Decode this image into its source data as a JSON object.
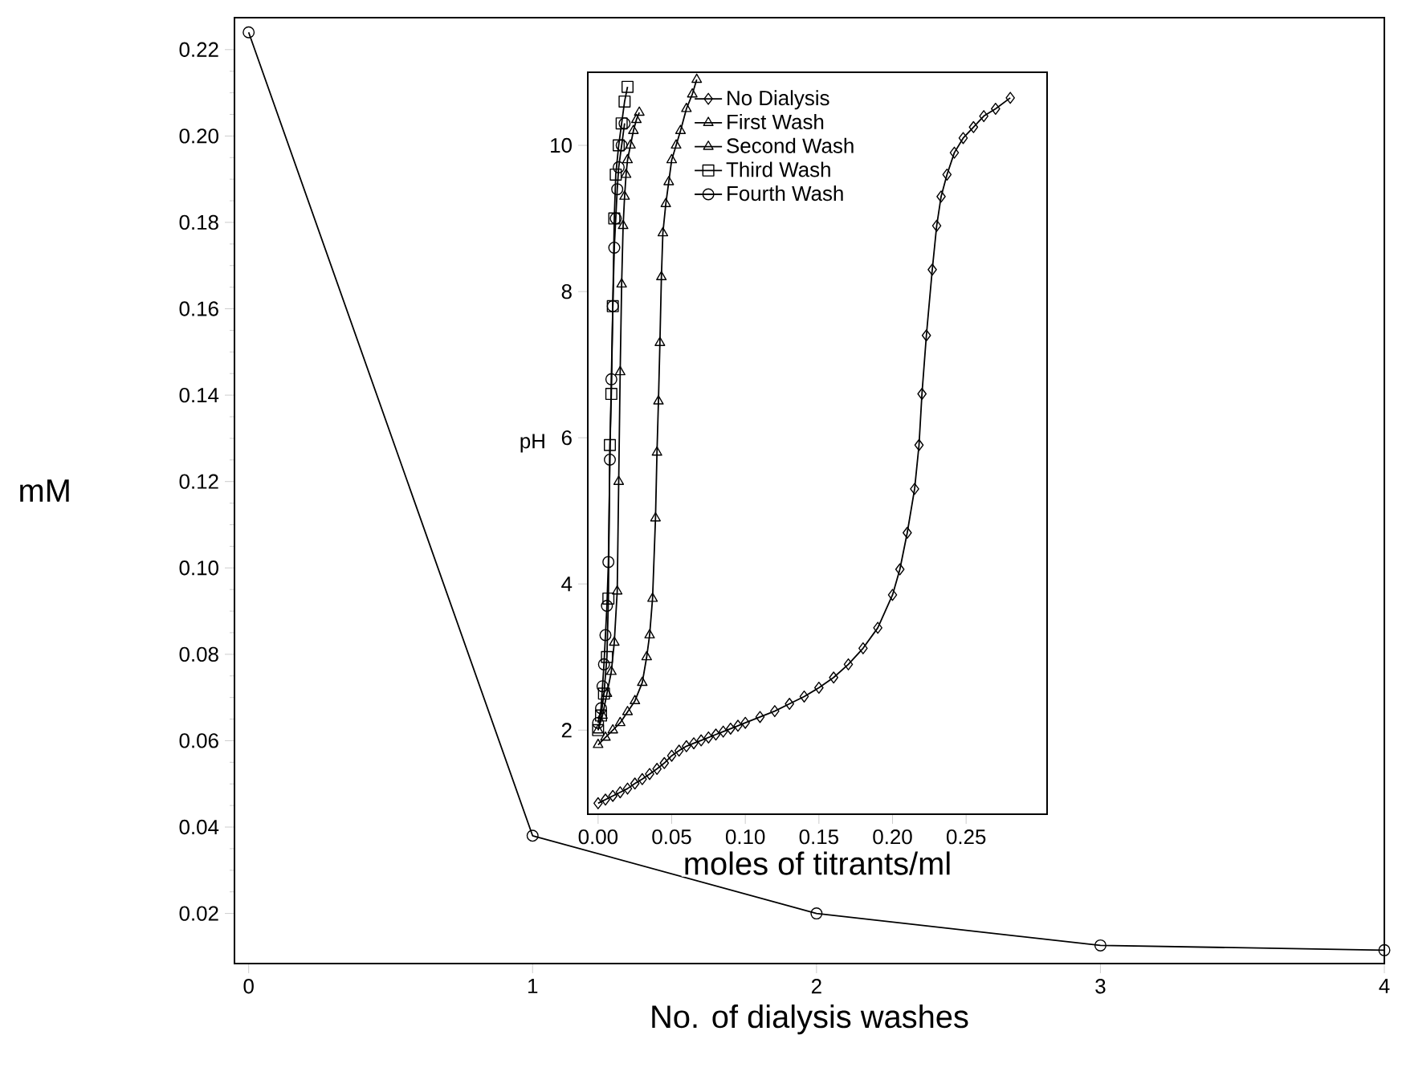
{
  "chart_data": [
    {
      "type": "line",
      "xlabel": "No. of dialysis washes",
      "ylabel": "mM",
      "color": "#000000",
      "marker": "circle",
      "x": [
        0,
        1,
        2,
        3,
        4
      ],
      "values": [
        0.224,
        0.038,
        0.02,
        0.0126,
        0.0115
      ],
      "xlim": [
        -0.05,
        4
      ],
      "ylim": [
        0.0084,
        0.2274
      ],
      "xticks": [
        0,
        1,
        2,
        3,
        4
      ],
      "yticks": [
        0.02,
        0.04,
        0.06,
        0.08,
        {
          "value": 0.1,
          "label": "0.10"
        },
        0.12,
        0.14,
        0.16,
        0.18,
        {
          "value": 0.2,
          "label": "0.20"
        },
        0.22
      ]
    },
    {
      "type": "line",
      "xlabel": "moles of titrants/ml",
      "ylabel": "pH",
      "legend": "top left",
      "xlim": [
        -0.007,
        0.305
      ],
      "ylim": [
        0.85,
        11.0
      ],
      "xticks": [
        {
          "value": 0,
          "label": "0.00"
        },
        0.05,
        {
          "value": 0.1,
          "label": "0.10"
        },
        0.15,
        {
          "value": 0.2,
          "label": "0.20"
        },
        0.25
      ],
      "yticks": [
        2,
        4,
        6,
        8,
        10
      ],
      "series": [
        {
          "name": "No Dialysis",
          "color": "#000000",
          "marker": "diamond",
          "x": [
            0.0,
            0.005,
            0.01,
            0.015,
            0.02,
            0.025,
            0.03,
            0.035,
            0.04,
            0.045,
            0.05,
            0.055,
            0.06,
            0.065,
            0.07,
            0.075,
            0.08,
            0.085,
            0.09,
            0.095,
            0.1,
            0.11,
            0.12,
            0.13,
            0.14,
            0.15,
            0.16,
            0.17,
            0.18,
            0.19,
            0.2,
            0.205,
            0.21,
            0.215,
            0.218,
            0.22,
            0.223,
            0.227,
            0.23,
            0.233,
            0.237,
            0.242,
            0.248,
            0.255,
            0.262,
            0.27,
            0.28
          ],
          "values": [
            1.0,
            1.05,
            1.1,
            1.15,
            1.2,
            1.27,
            1.33,
            1.4,
            1.47,
            1.55,
            1.65,
            1.72,
            1.78,
            1.82,
            1.86,
            1.9,
            1.94,
            1.98,
            2.02,
            2.06,
            2.1,
            2.18,
            2.26,
            2.36,
            2.46,
            2.58,
            2.72,
            2.9,
            3.12,
            3.4,
            3.85,
            4.2,
            4.7,
            5.3,
            5.9,
            6.6,
            7.4,
            8.3,
            8.9,
            9.3,
            9.6,
            9.9,
            10.1,
            10.25,
            10.4,
            10.5,
            10.65
          ]
        },
        {
          "name": "First Wash",
          "color": "#000000",
          "marker": "triangle",
          "x": [
            0.0,
            0.005,
            0.01,
            0.015,
            0.02,
            0.025,
            0.03,
            0.033,
            0.035,
            0.037,
            0.039,
            0.04,
            0.041,
            0.042,
            0.043,
            0.044,
            0.046,
            0.048,
            0.05,
            0.053,
            0.056,
            0.06,
            0.064,
            0.067
          ],
          "values": [
            1.8,
            1.9,
            2.0,
            2.1,
            2.25,
            2.4,
            2.65,
            3.0,
            3.3,
            3.8,
            4.9,
            5.8,
            6.5,
            7.3,
            8.2,
            8.8,
            9.2,
            9.5,
            9.8,
            10.0,
            10.2,
            10.5,
            10.7,
            10.9
          ]
        },
        {
          "name": "Second Wash",
          "color": "#000000",
          "marker": "triangle",
          "x": [
            0.0,
            0.003,
            0.006,
            0.009,
            0.011,
            0.013,
            0.014,
            0.015,
            0.016,
            0.017,
            0.018,
            0.019,
            0.02,
            0.022,
            0.024,
            0.026,
            0.028
          ],
          "values": [
            2.0,
            2.2,
            2.5,
            2.8,
            3.2,
            3.9,
            5.4,
            6.9,
            8.1,
            8.9,
            9.3,
            9.6,
            9.8,
            10.0,
            10.2,
            10.35,
            10.45
          ]
        },
        {
          "name": "Third Wash",
          "color": "#000000",
          "marker": "square",
          "x": [
            0.0,
            0.002,
            0.004,
            0.006,
            0.007,
            0.008,
            0.009,
            0.01,
            0.011,
            0.012,
            0.014,
            0.016,
            0.018,
            0.02
          ],
          "values": [
            2.0,
            2.2,
            2.5,
            3.0,
            3.8,
            5.9,
            6.6,
            7.8,
            9.0,
            9.6,
            10.0,
            10.3,
            10.6,
            10.8
          ]
        },
        {
          "name": "Fourth Wash",
          "color": "#000000",
          "marker": "circle",
          "x": [
            0.0,
            0.002,
            0.003,
            0.004,
            0.005,
            0.006,
            0.007,
            0.008,
            0.009,
            0.01,
            0.011,
            0.012,
            0.013,
            0.014,
            0.016,
            0.018
          ],
          "values": [
            2.1,
            2.3,
            2.6,
            2.9,
            3.3,
            3.7,
            4.3,
            5.7,
            6.8,
            7.8,
            8.6,
            9.0,
            9.4,
            9.7,
            10.0,
            10.3
          ]
        }
      ]
    }
  ]
}
